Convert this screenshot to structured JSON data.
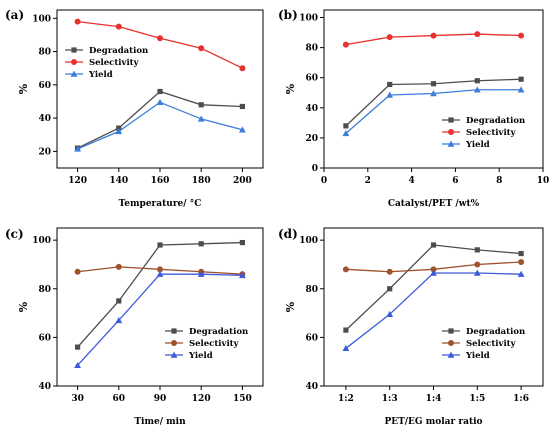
{
  "chart_data": [
    {
      "type": "line",
      "panel_label": "(a)",
      "xlabel": "Temperature/ °C",
      "ylabel": "%",
      "x": [
        120,
        140,
        160,
        180,
        200
      ],
      "x_ticks": [
        "120",
        "140",
        "160",
        "180",
        "200"
      ],
      "xlim": [
        110,
        210
      ],
      "ylim": [
        10,
        105
      ],
      "y_ticks": [
        20,
        40,
        60,
        80,
        100
      ],
      "legend_position": "middle-left",
      "series": [
        {
          "name": "Degradation",
          "values": [
            22,
            34,
            56,
            48,
            47
          ],
          "color": "#4d4d4d",
          "marker": "square"
        },
        {
          "name": "Selectivity",
          "values": [
            98,
            95,
            88,
            82,
            70
          ],
          "color": "#e8322f",
          "marker": "circle"
        },
        {
          "name": "Yield",
          "values": [
            21.5,
            32,
            49.5,
            39.5,
            33
          ],
          "color": "#3b7ddb",
          "marker": "triangle"
        }
      ]
    },
    {
      "type": "line",
      "panel_label": "(b)",
      "xlabel": "Catalyst/PET  /wt%",
      "ylabel": "%",
      "x": [
        1,
        3,
        5,
        7,
        9
      ],
      "x_ticks": [
        "0",
        "2",
        "4",
        "6",
        "8",
        "10"
      ],
      "xlim": [
        0,
        10
      ],
      "ylim": [
        0,
        105
      ],
      "y_ticks": [
        0,
        20,
        40,
        60,
        80,
        100
      ],
      "legend_position": "middle-right",
      "series": [
        {
          "name": "Degradation",
          "values": [
            28,
            55.5,
            56,
            58,
            59
          ],
          "color": "#4d4d4d",
          "marker": "square"
        },
        {
          "name": "Selectivity",
          "values": [
            82,
            87,
            88,
            89,
            88
          ],
          "color": "#e8322f",
          "marker": "circle"
        },
        {
          "name": "Yield",
          "values": [
            23,
            48.5,
            49.5,
            52,
            52
          ],
          "color": "#3b7ddb",
          "marker": "triangle"
        }
      ]
    },
    {
      "type": "line",
      "panel_label": "(c)",
      "xlabel": "Time/ min",
      "ylabel": "%",
      "x": [
        30,
        60,
        90,
        120,
        150
      ],
      "x_ticks": [
        "30",
        "60",
        "90",
        "120",
        "150"
      ],
      "xlim": [
        15,
        165
      ],
      "ylim": [
        40,
        105
      ],
      "y_ticks": [
        40,
        60,
        80,
        100
      ],
      "legend_position": "bottom-right",
      "series": [
        {
          "name": "Degradation",
          "values": [
            56,
            75,
            98,
            98.5,
            99
          ],
          "color": "#4d4d4d",
          "marker": "square"
        },
        {
          "name": "Selectivity",
          "values": [
            87,
            89,
            88,
            87,
            86
          ],
          "color": "#a0522d",
          "marker": "circle"
        },
        {
          "name": "Yield",
          "values": [
            48.5,
            67,
            86,
            86,
            85.5
          ],
          "color": "#3b5bdb",
          "marker": "triangle"
        }
      ]
    },
    {
      "type": "line",
      "panel_label": "(d)",
      "xlabel": "PET/EG  molar ratio",
      "ylabel": "%",
      "x": [
        1,
        2,
        3,
        4,
        5
      ],
      "x_ticks": [
        "1:2",
        "1:3",
        "1:4",
        "1:5",
        "1:6"
      ],
      "xlim": [
        0.5,
        5.5
      ],
      "ylim": [
        40,
        105
      ],
      "y_ticks": [
        40,
        60,
        80,
        100
      ],
      "legend_position": "bottom-right",
      "series": [
        {
          "name": "Degradation",
          "values": [
            63,
            80,
            98,
            96,
            94.5
          ],
          "color": "#4d4d4d",
          "marker": "square"
        },
        {
          "name": "Selectivity",
          "values": [
            88,
            87,
            88,
            90,
            91
          ],
          "color": "#a0522d",
          "marker": "circle"
        },
        {
          "name": "Yield",
          "values": [
            55.5,
            69.5,
            86.5,
            86.5,
            86
          ],
          "color": "#3b5bdb",
          "marker": "triangle"
        }
      ]
    }
  ]
}
